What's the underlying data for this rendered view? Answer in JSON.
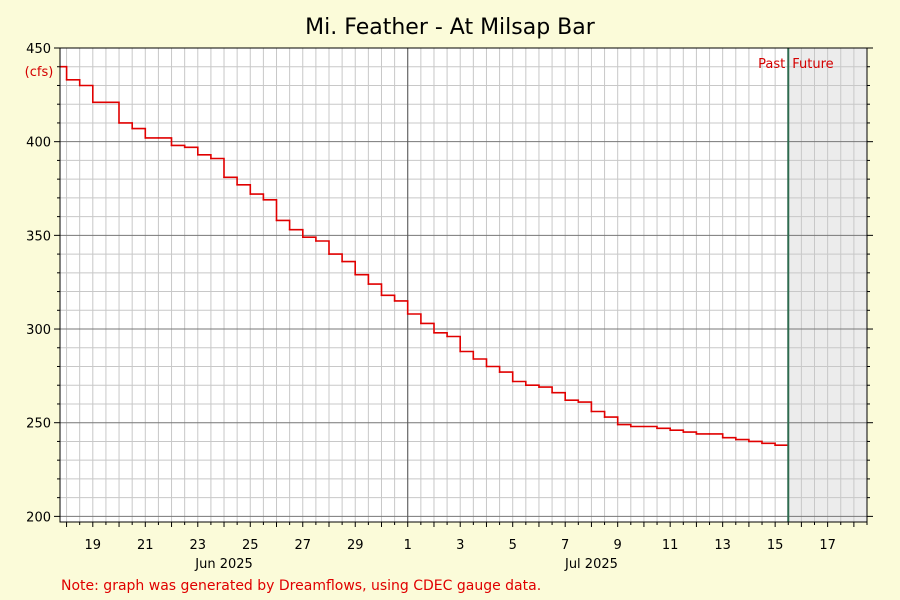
{
  "chart_data": {
    "type": "line",
    "title": "Mi. Feather - At Milsap Bar",
    "unit_label": "(cfs)",
    "xlabel": "",
    "ylabel": "",
    "xlim": [
      "2025-06-17T18:00",
      "2025-07-18T12:00"
    ],
    "ylim": [
      197,
      450
    ],
    "y_ticks": [
      200,
      250,
      300,
      350,
      400,
      450
    ],
    "x_tick_labels": [
      {
        "date": "2025-06-19",
        "label": "19"
      },
      {
        "date": "2025-06-21",
        "label": "21"
      },
      {
        "date": "2025-06-23",
        "label": "23"
      },
      {
        "date": "2025-06-25",
        "label": "25"
      },
      {
        "date": "2025-06-27",
        "label": "27"
      },
      {
        "date": "2025-06-29",
        "label": "29"
      },
      {
        "date": "2025-07-01",
        "label": "1"
      },
      {
        "date": "2025-07-03",
        "label": "3"
      },
      {
        "date": "2025-07-05",
        "label": "5"
      },
      {
        "date": "2025-07-07",
        "label": "7"
      },
      {
        "date": "2025-07-09",
        "label": "9"
      },
      {
        "date": "2025-07-11",
        "label": "11"
      },
      {
        "date": "2025-07-13",
        "label": "13"
      },
      {
        "date": "2025-07-15",
        "label": "15"
      },
      {
        "date": "2025-07-17",
        "label": "17"
      }
    ],
    "month_labels": [
      {
        "date": "2025-06-24",
        "label": "Jun 2025"
      },
      {
        "date": "2025-07-08",
        "label": "Jul 2025"
      }
    ],
    "month_boundary": "2025-07-01",
    "now": "2025-07-15T12:00",
    "past_label": "Past",
    "future_label": "Future",
    "grid": true,
    "series": [
      {
        "color": "#e00000",
        "points": [
          [
            "2025-06-17T18:00",
            440
          ],
          [
            "2025-06-18T00:00",
            433
          ],
          [
            "2025-06-18T12:00",
            430
          ],
          [
            "2025-06-19T00:00",
            421
          ],
          [
            "2025-06-19T12:00",
            421
          ],
          [
            "2025-06-20T00:00",
            410
          ],
          [
            "2025-06-20T12:00",
            407
          ],
          [
            "2025-06-21T00:00",
            402
          ],
          [
            "2025-06-21T12:00",
            402
          ],
          [
            "2025-06-22T00:00",
            398
          ],
          [
            "2025-06-22T12:00",
            397
          ],
          [
            "2025-06-23T00:00",
            393
          ],
          [
            "2025-06-23T12:00",
            391
          ],
          [
            "2025-06-24T00:00",
            381
          ],
          [
            "2025-06-24T12:00",
            377
          ],
          [
            "2025-06-25T00:00",
            372
          ],
          [
            "2025-06-25T12:00",
            369
          ],
          [
            "2025-06-26T00:00",
            358
          ],
          [
            "2025-06-26T12:00",
            353
          ],
          [
            "2025-06-27T00:00",
            349
          ],
          [
            "2025-06-27T12:00",
            347
          ],
          [
            "2025-06-28T00:00",
            340
          ],
          [
            "2025-06-28T12:00",
            336
          ],
          [
            "2025-06-29T00:00",
            329
          ],
          [
            "2025-06-29T12:00",
            324
          ],
          [
            "2025-06-30T00:00",
            318
          ],
          [
            "2025-06-30T12:00",
            315
          ],
          [
            "2025-07-01T00:00",
            308
          ],
          [
            "2025-07-01T12:00",
            303
          ],
          [
            "2025-07-02T00:00",
            298
          ],
          [
            "2025-07-02T12:00",
            296
          ],
          [
            "2025-07-03T00:00",
            288
          ],
          [
            "2025-07-03T12:00",
            284
          ],
          [
            "2025-07-04T00:00",
            280
          ],
          [
            "2025-07-04T12:00",
            277
          ],
          [
            "2025-07-05T00:00",
            272
          ],
          [
            "2025-07-05T12:00",
            270
          ],
          [
            "2025-07-06T00:00",
            269
          ],
          [
            "2025-07-06T12:00",
            266
          ],
          [
            "2025-07-07T00:00",
            262
          ],
          [
            "2025-07-07T12:00",
            261
          ],
          [
            "2025-07-08T00:00",
            256
          ],
          [
            "2025-07-08T12:00",
            253
          ],
          [
            "2025-07-09T00:00",
            249
          ],
          [
            "2025-07-09T12:00",
            248
          ],
          [
            "2025-07-10T00:00",
            248
          ],
          [
            "2025-07-10T12:00",
            247
          ],
          [
            "2025-07-11T00:00",
            246
          ],
          [
            "2025-07-11T12:00",
            245
          ],
          [
            "2025-07-12T00:00",
            244
          ],
          [
            "2025-07-12T12:00",
            244
          ],
          [
            "2025-07-13T00:00",
            242
          ],
          [
            "2025-07-13T12:00",
            241
          ],
          [
            "2025-07-14T00:00",
            240
          ],
          [
            "2025-07-14T12:00",
            239
          ],
          [
            "2025-07-15T00:00",
            238
          ],
          [
            "2025-07-15T12:00",
            238
          ]
        ]
      }
    ],
    "colors": {
      "background": "#fbfbd9",
      "plot_background": "#ffffff",
      "future_shade": "#ececec",
      "minor_grid": "#c8c8c8",
      "major_grid": "#777777",
      "now_line": "#2e6b4f",
      "line": "#e00000"
    }
  },
  "footer_note": "Note: graph was generated by Dreamflows, using CDEC gauge data."
}
